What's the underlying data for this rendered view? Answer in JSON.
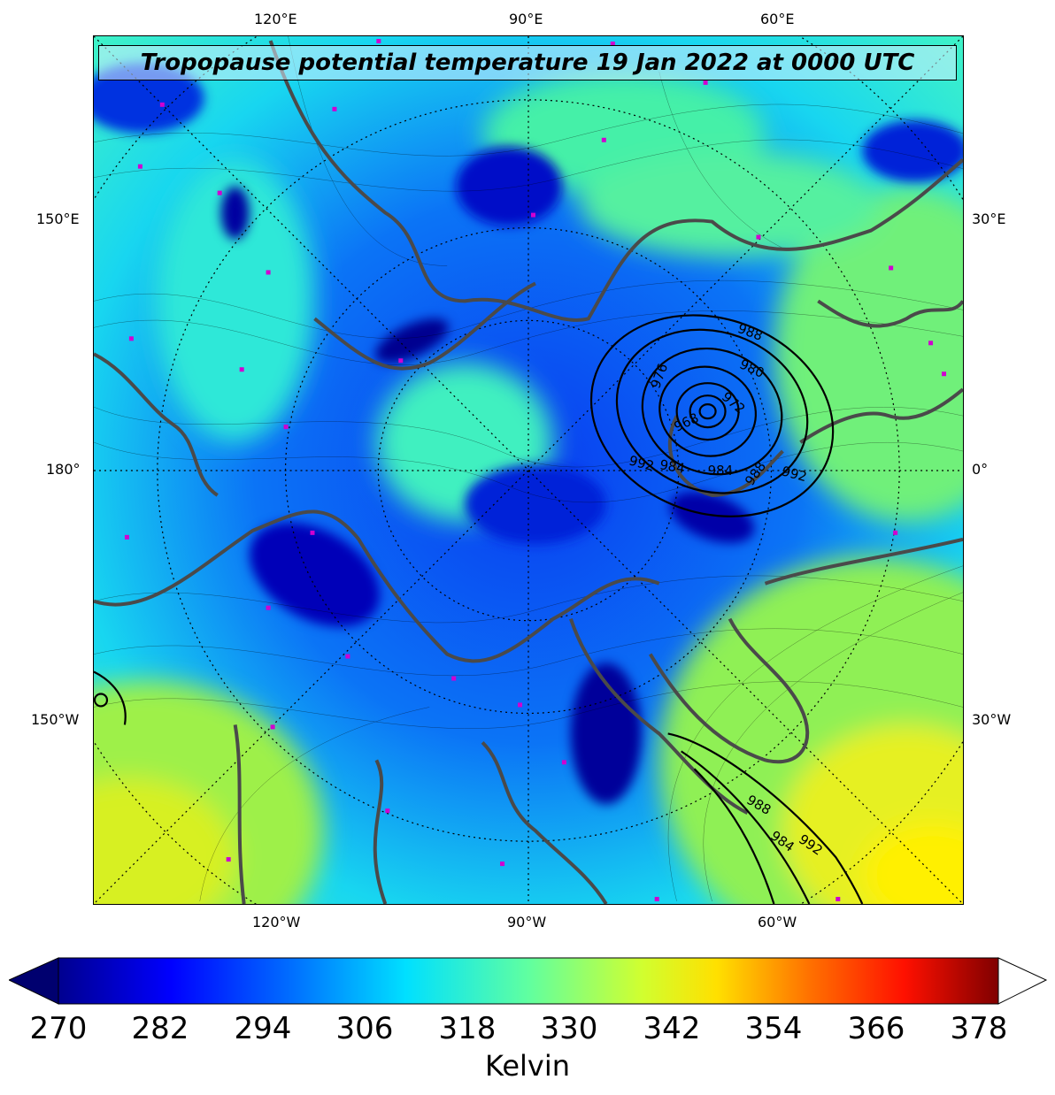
{
  "title": "Tropopause potential temperature 19 Jan 2022 at 0000 UTC",
  "axes": {
    "top": [
      "120°E",
      "90°E",
      "60°E"
    ],
    "bottom": [
      "120°W",
      "90°W",
      "60°W"
    ],
    "left": [
      "150°E",
      "180°",
      "150°W"
    ],
    "right": [
      "30°E",
      "0°",
      "30°W"
    ]
  },
  "pressure_contours": {
    "labels_upper_low": [
      "988",
      "980",
      "976",
      "972",
      "968",
      "992",
      "984",
      "984",
      "988",
      "992"
    ],
    "labels_lower_low": [
      "988",
      "984",
      "992"
    ]
  },
  "colorbar": {
    "ticks": [
      "270",
      "282",
      "294",
      "306",
      "318",
      "330",
      "342",
      "354",
      "366",
      "378"
    ],
    "min": 270,
    "max": 378,
    "unit": "Kelvin",
    "colormap": "jet",
    "colors": [
      "#00008f",
      "#0000ff",
      "#0080ff",
      "#00ffff",
      "#80ff80",
      "#ffff00",
      "#ff8000",
      "#ff0000",
      "#800000"
    ]
  }
}
